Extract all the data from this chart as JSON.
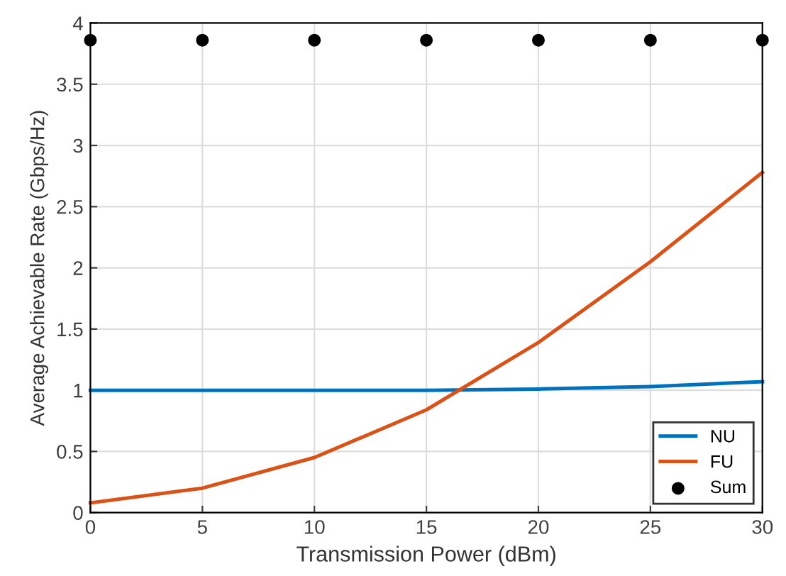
{
  "chart_data": {
    "type": "line",
    "xlabel": "Transmission Power (dBm)",
    "ylabel": "Average Achievable Rate (Gbps/Hz)",
    "x": [
      0,
      5,
      10,
      15,
      20,
      25,
      30
    ],
    "series": [
      {
        "name": "NU",
        "color": "#0072bd",
        "values": [
          1.0,
          1.0,
          1.0,
          1.0,
          1.01,
          1.03,
          1.07
        ]
      },
      {
        "name": "FU",
        "color": "#d95319",
        "values": [
          0.08,
          0.2,
          0.45,
          0.84,
          1.39,
          2.05,
          2.78
        ]
      },
      {
        "name": "Sum",
        "color": "#000000",
        "type": "scatter",
        "marker": "circle",
        "values": [
          3.86,
          3.86,
          3.86,
          3.86,
          3.86,
          3.86,
          3.86
        ]
      }
    ],
    "xlim": [
      0,
      30
    ],
    "xticks": [
      0,
      5,
      10,
      15,
      20,
      25,
      30
    ],
    "ylim": [
      0,
      4
    ],
    "yticks": [
      0,
      0.5,
      1,
      1.5,
      2,
      2.5,
      3,
      3.5,
      4
    ],
    "grid": true,
    "legend": "bottom right"
  }
}
